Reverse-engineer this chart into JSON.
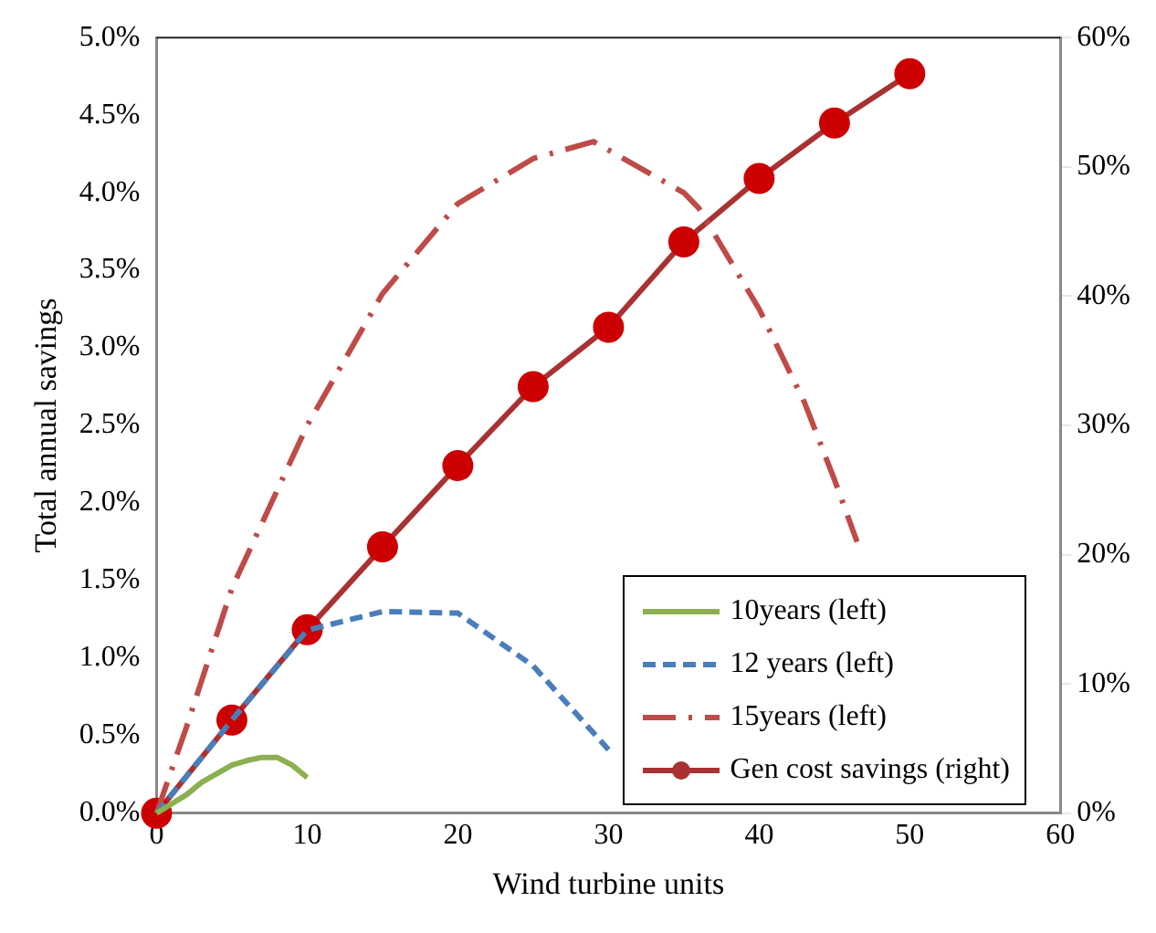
{
  "chart_data": {
    "type": "line",
    "xlabel": "Wind turbine units",
    "ylabel": "Total annual savings",
    "xlim": [
      0,
      60
    ],
    "xticks": [
      0,
      10,
      20,
      30,
      40,
      50,
      60
    ],
    "ylim": [
      0,
      5
    ],
    "yticks": [
      {
        "value": 0,
        "label": "0.0%"
      },
      {
        "value": 0.5,
        "label": "0.5%"
      },
      {
        "value": 1,
        "label": "1.0%"
      },
      {
        "value": 1.5,
        "label": "1.5%"
      },
      {
        "value": 2,
        "label": "2.0%"
      },
      {
        "value": 2.5,
        "label": "2.5%"
      },
      {
        "value": 3,
        "label": "3.0%"
      },
      {
        "value": 3.5,
        "label": "3.5%"
      },
      {
        "value": 4,
        "label": "4.0%"
      },
      {
        "value": 4.5,
        "label": "4.5%"
      },
      {
        "value": 5,
        "label": "5.0%"
      }
    ],
    "y2lim": [
      0,
      60
    ],
    "y2ticks": [
      {
        "value": 0,
        "label": "0%"
      },
      {
        "value": 10,
        "label": "10%"
      },
      {
        "value": 20,
        "label": "20%"
      },
      {
        "value": 30,
        "label": "30%"
      },
      {
        "value": 40,
        "label": "40%"
      },
      {
        "value": 50,
        "label": "50%"
      },
      {
        "value": 60,
        "label": "60%"
      }
    ],
    "grid": false,
    "legend": "bottom right",
    "series": [
      {
        "name": "10years (left)",
        "color": "#8cb050",
        "line_style": "solid",
        "marker": "none",
        "x": [
          0,
          2,
          3,
          5,
          6,
          7,
          8,
          9,
          10
        ],
        "values": [
          0,
          0.12,
          0.2,
          0.31,
          0.34,
          0.36,
          0.36,
          0.31,
          0.23
        ]
      },
      {
        "name": "12 years (left)",
        "color": "#4a7ebb",
        "line_style": "dashed",
        "marker": "none",
        "x": [
          0,
          5,
          10,
          15,
          20,
          25,
          30
        ],
        "values": [
          0,
          0.6,
          1.18,
          1.3,
          1.29,
          0.95,
          0.41
        ]
      },
      {
        "name": "15years (left)",
        "color": "#be4b48",
        "line_style": "dashdot",
        "marker": "none",
        "x": [
          0,
          2,
          5,
          10,
          15,
          20,
          25,
          29,
          35,
          36,
          40,
          43,
          45,
          46.5
        ],
        "values": [
          0,
          0.56,
          1.45,
          2.5,
          3.35,
          3.93,
          4.22,
          4.33,
          4.0,
          3.9,
          3.25,
          2.65,
          2.15,
          1.75
        ]
      },
      {
        "name": "Gen cost savings (right)",
        "color": "#a83232",
        "line_style": "solid",
        "marker": "circle",
        "axis": "y2",
        "x": [
          0,
          5,
          10,
          15,
          20,
          25,
          30,
          35,
          40,
          45,
          50
        ],
        "values": [
          0,
          7.2,
          14.2,
          20.6,
          26.9,
          33.0,
          37.6,
          44.2,
          49.1,
          53.4,
          57.2
        ]
      }
    ]
  }
}
